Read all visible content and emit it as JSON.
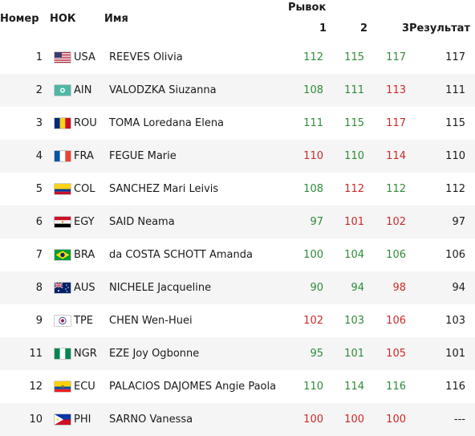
{
  "headers": {
    "rank": "Номер",
    "noc": "НОК",
    "name": "Имя",
    "snatch": "Рывок",
    "a1": "1",
    "a2": "2",
    "a3": "3",
    "result": "Результат"
  },
  "colors": {
    "good": "#2e8b3a",
    "fail": "#cc2a2a",
    "alt_row": "#f5f5f5"
  },
  "rows": [
    {
      "rank": "1",
      "noc": "USA",
      "flag": "usa-flag-icon",
      "name": "REEVES Olivia",
      "a1": "112",
      "a1s": "good",
      "a2": "115",
      "a2s": "good",
      "a3": "117",
      "a3s": "good",
      "result": "117"
    },
    {
      "rank": "2",
      "noc": "AIN",
      "flag": "ain-flag-icon",
      "name": "VALODZKA Siuzanna",
      "a1": "108",
      "a1s": "good",
      "a2": "111",
      "a2s": "good",
      "a3": "113",
      "a3s": "fail",
      "result": "111"
    },
    {
      "rank": "3",
      "noc": "ROU",
      "flag": "rou-flag-icon",
      "name": "TOMA Loredana Elena",
      "a1": "111",
      "a1s": "good",
      "a2": "115",
      "a2s": "good",
      "a3": "117",
      "a3s": "fail",
      "result": "115"
    },
    {
      "rank": "4",
      "noc": "FRA",
      "flag": "fra-flag-icon",
      "name": "FEGUE Marie",
      "a1": "110",
      "a1s": "fail",
      "a2": "110",
      "a2s": "good",
      "a3": "114",
      "a3s": "fail",
      "result": "110"
    },
    {
      "rank": "5",
      "noc": "COL",
      "flag": "col-flag-icon",
      "name": "SANCHEZ Mari Leivis",
      "a1": "108",
      "a1s": "good",
      "a2": "112",
      "a2s": "fail",
      "a3": "112",
      "a3s": "good",
      "result": "112"
    },
    {
      "rank": "6",
      "noc": "EGY",
      "flag": "egy-flag-icon",
      "name": "SAID Neama",
      "a1": "97",
      "a1s": "good",
      "a2": "101",
      "a2s": "fail",
      "a3": "102",
      "a3s": "fail",
      "result": "97"
    },
    {
      "rank": "7",
      "noc": "BRA",
      "flag": "bra-flag-icon",
      "name": "da COSTA SCHOTT Amanda",
      "a1": "100",
      "a1s": "good",
      "a2": "104",
      "a2s": "good",
      "a3": "106",
      "a3s": "good",
      "result": "106"
    },
    {
      "rank": "8",
      "noc": "AUS",
      "flag": "aus-flag-icon",
      "name": "NICHELE Jacqueline",
      "a1": "90",
      "a1s": "good",
      "a2": "94",
      "a2s": "good",
      "a3": "98",
      "a3s": "fail",
      "result": "94"
    },
    {
      "rank": "9",
      "noc": "TPE",
      "flag": "tpe-flag-icon",
      "name": "CHEN Wen-Huei",
      "a1": "102",
      "a1s": "fail",
      "a2": "103",
      "a2s": "good",
      "a3": "106",
      "a3s": "fail",
      "result": "103"
    },
    {
      "rank": "11",
      "noc": "NGR",
      "flag": "ngr-flag-icon",
      "name": "EZE Joy Ogbonne",
      "a1": "95",
      "a1s": "good",
      "a2": "101",
      "a2s": "good",
      "a3": "105",
      "a3s": "fail",
      "result": "101"
    },
    {
      "rank": "12",
      "noc": "ECU",
      "flag": "ecu-flag-icon",
      "name": "PALACIOS DAJOMES Angie Paola",
      "a1": "110",
      "a1s": "good",
      "a2": "114",
      "a2s": "good",
      "a3": "116",
      "a3s": "good",
      "result": "116"
    },
    {
      "rank": "10",
      "noc": "PHI",
      "flag": "phi-flag-icon",
      "name": "SARNO Vanessa",
      "a1": "100",
      "a1s": "fail",
      "a2": "100",
      "a2s": "fail",
      "a3": "100",
      "a3s": "fail",
      "result": "---"
    }
  ]
}
